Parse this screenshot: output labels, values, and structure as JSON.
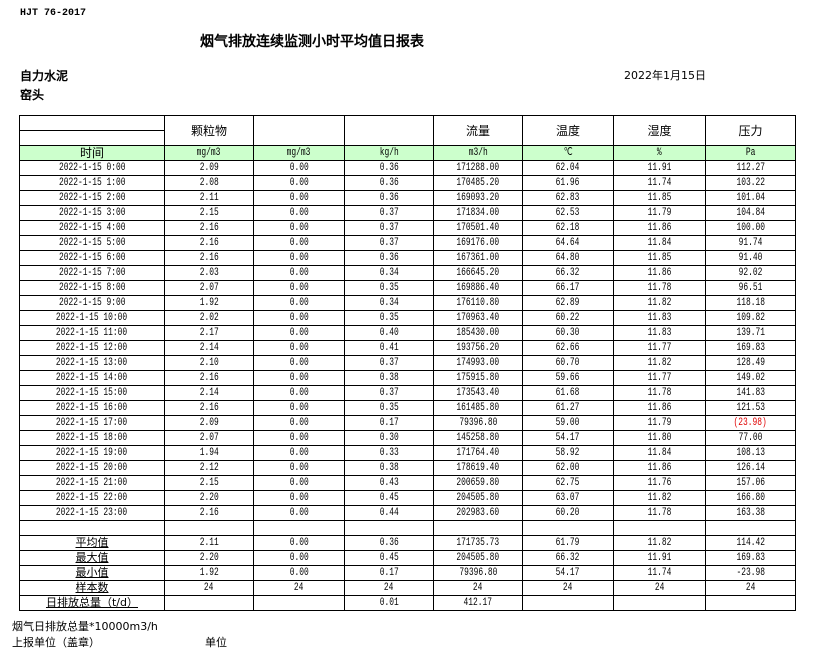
{
  "standard": "HJT  76-2017",
  "title": "烟气排放连续监测小时平均值日报表",
  "company": "自力水泥",
  "location": "窑头",
  "report_date": "2022年1月15日",
  "header": {
    "columns": [
      "",
      "颗粒物",
      "",
      "",
      "流量",
      "温度",
      "湿度",
      "压力"
    ],
    "units": [
      "时间",
      "mg/m3",
      "mg/m3",
      "kg/h",
      "m3/h",
      "℃",
      "%",
      "Pa"
    ]
  },
  "rows": [
    [
      "2022-1-15 0:00",
      "2.09",
      "0.00",
      "0.36",
      "171288.00",
      "62.04",
      "11.91",
      "112.27"
    ],
    [
      "2022-1-15 1:00",
      "2.08",
      "0.00",
      "0.36",
      "170485.20",
      "61.96",
      "11.74",
      "103.22"
    ],
    [
      "2022-1-15 2:00",
      "2.11",
      "0.00",
      "0.36",
      "169093.20",
      "62.83",
      "11.85",
      "101.04"
    ],
    [
      "2022-1-15 3:00",
      "2.15",
      "0.00",
      "0.37",
      "171834.00",
      "62.53",
      "11.79",
      "104.84"
    ],
    [
      "2022-1-15 4:00",
      "2.16",
      "0.00",
      "0.37",
      "170501.40",
      "62.18",
      "11.86",
      "100.00"
    ],
    [
      "2022-1-15 5:00",
      "2.16",
      "0.00",
      "0.37",
      "169176.00",
      "64.64",
      "11.84",
      "91.74"
    ],
    [
      "2022-1-15 6:00",
      "2.16",
      "0.00",
      "0.36",
      "167361.00",
      "64.80",
      "11.85",
      "91.40"
    ],
    [
      "2022-1-15 7:00",
      "2.03",
      "0.00",
      "0.34",
      "166645.20",
      "66.32",
      "11.86",
      "92.02"
    ],
    [
      "2022-1-15 8:00",
      "2.07",
      "0.00",
      "0.35",
      "169886.40",
      "66.17",
      "11.78",
      "96.51"
    ],
    [
      "2022-1-15 9:00",
      "1.92",
      "0.00",
      "0.34",
      "176110.80",
      "62.89",
      "11.82",
      "118.18"
    ],
    [
      "2022-1-15 10:00",
      "2.02",
      "0.00",
      "0.35",
      "170963.40",
      "60.22",
      "11.83",
      "109.82"
    ],
    [
      "2022-1-15 11:00",
      "2.17",
      "0.00",
      "0.40",
      "185430.00",
      "60.30",
      "11.83",
      "139.71"
    ],
    [
      "2022-1-15 12:00",
      "2.14",
      "0.00",
      "0.41",
      "193756.20",
      "62.66",
      "11.77",
      "169.83"
    ],
    [
      "2022-1-15 13:00",
      "2.10",
      "0.00",
      "0.37",
      "174993.00",
      "60.70",
      "11.82",
      "128.49"
    ],
    [
      "2022-1-15 14:00",
      "2.16",
      "0.00",
      "0.38",
      "175915.80",
      "59.66",
      "11.77",
      "149.02"
    ],
    [
      "2022-1-15 15:00",
      "2.14",
      "0.00",
      "0.37",
      "173543.40",
      "61.68",
      "11.78",
      "141.83"
    ],
    [
      "2022-1-15 16:00",
      "2.16",
      "0.00",
      "0.35",
      "161485.80",
      "61.27",
      "11.86",
      "121.53"
    ],
    [
      "2022-1-15 17:00",
      "2.09",
      "0.00",
      "0.17",
      "79396.80",
      "59.00",
      "11.79",
      "(23.98)"
    ],
    [
      "2022-1-15 18:00",
      "2.07",
      "0.00",
      "0.30",
      "145258.80",
      "54.17",
      "11.80",
      "77.00"
    ],
    [
      "2022-1-15 19:00",
      "1.94",
      "0.00",
      "0.33",
      "171764.40",
      "58.92",
      "11.84",
      "108.13"
    ],
    [
      "2022-1-15 20:00",
      "2.12",
      "0.00",
      "0.38",
      "178619.40",
      "62.00",
      "11.86",
      "126.14"
    ],
    [
      "2022-1-15 21:00",
      "2.15",
      "0.00",
      "0.43",
      "200659.80",
      "62.75",
      "11.76",
      "157.06"
    ],
    [
      "2022-1-15 22:00",
      "2.20",
      "0.00",
      "0.45",
      "204505.80",
      "63.07",
      "11.82",
      "166.80"
    ],
    [
      "2022-1-15 23:00",
      "2.16",
      "0.00",
      "0.44",
      "202983.60",
      "60.20",
      "11.78",
      "163.38"
    ]
  ],
  "stats": [
    [
      "平均值",
      "2.11",
      "0.00",
      "0.36",
      "171735.73",
      "61.79",
      "11.82",
      "114.42"
    ],
    [
      "最大值",
      "2.20",
      "0.00",
      "0.45",
      "204505.80",
      "66.32",
      "11.91",
      "169.83"
    ],
    [
      "最小值",
      "1.92",
      "0.00",
      "0.17",
      "79396.80",
      "54.17",
      "11.74",
      "-23.98"
    ],
    [
      "样本数",
      "24",
      "24",
      "24",
      "24",
      "24",
      "24",
      "24"
    ],
    [
      "日排放总量（t/d）",
      "",
      "",
      "0.01",
      "412.17",
      "",
      "",
      ""
    ]
  ],
  "footer": {
    "flue_total_note": "烟气日排放总量*10000m3/h",
    "reporting_unit": "上报单位（盖章）",
    "unit": "单位"
  },
  "colors": {
    "header_green": "#ccffcc",
    "negative_red": "#e00000"
  }
}
